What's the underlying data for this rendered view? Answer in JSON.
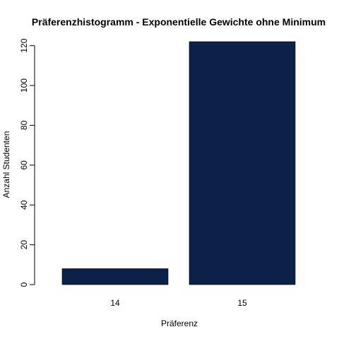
{
  "chart_data": {
    "type": "bar",
    "title": "Präferenzhistogramm - Exponentielle Gewichte ohne Minimum",
    "xlabel": "Präferenz",
    "ylabel": "Anzahl Studenten",
    "categories": [
      "14",
      "15"
    ],
    "values": [
      8,
      122
    ],
    "ylim": [
      0,
      122
    ],
    "yticks": [
      0,
      20,
      40,
      60,
      80,
      100,
      120
    ],
    "grid": false,
    "legend": "none",
    "bar_color": "#0b2149"
  }
}
